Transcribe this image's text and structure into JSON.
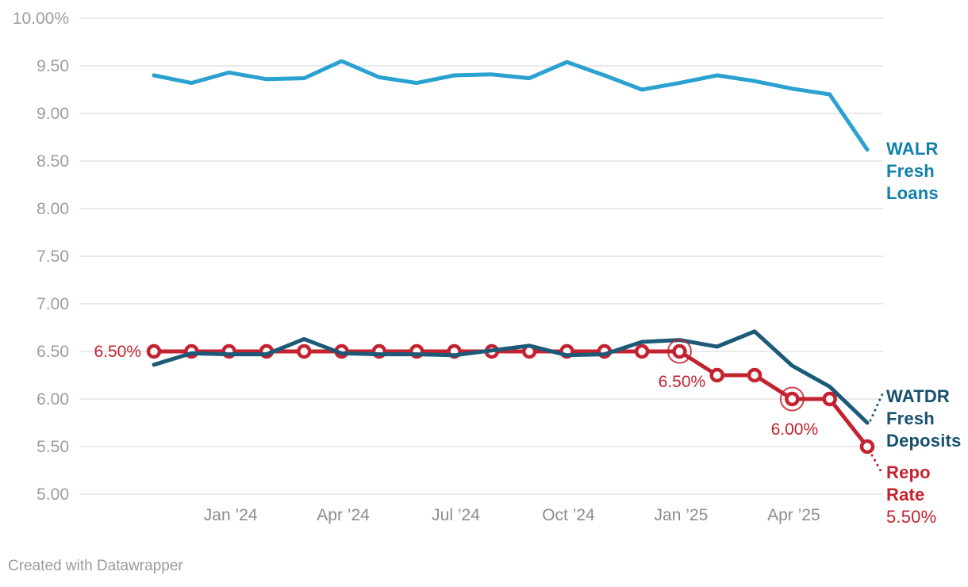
{
  "chart_data": {
    "type": "line",
    "x": [
      "Nov ’23",
      "Dec ’23",
      "Jan ’24",
      "Feb ’24",
      "Mar ’24",
      "Apr ’24",
      "May ’24",
      "Jun ’24",
      "Jul ’24",
      "Aug ’24",
      "Sep ’24",
      "Oct ’24",
      "Nov ’24",
      "Dec ’24",
      "Jan ’25",
      "Feb ’25",
      "Mar ’25",
      "Apr ’25",
      "May ’25",
      "Jun ’25"
    ],
    "ylim": [
      5.0,
      10.0
    ],
    "grid": "horizontal",
    "legend_position": "right-edge-labels",
    "y_ticks": [
      {
        "value": 10.0,
        "label": "10.00%"
      },
      {
        "value": 9.5,
        "label": "9.50"
      },
      {
        "value": 9.0,
        "label": "9.00"
      },
      {
        "value": 8.5,
        "label": "8.50"
      },
      {
        "value": 8.0,
        "label": "8.00"
      },
      {
        "value": 7.5,
        "label": "7.50"
      },
      {
        "value": 7.0,
        "label": "7.00"
      },
      {
        "value": 6.5,
        "label": "6.50"
      },
      {
        "value": 6.0,
        "label": "6.00"
      },
      {
        "value": 5.5,
        "label": "5.50"
      },
      {
        "value": 5.0,
        "label": "5.00"
      }
    ],
    "x_ticks": [
      {
        "index": 2,
        "label": "Jan ’24"
      },
      {
        "index": 5,
        "label": "Apr ’24"
      },
      {
        "index": 8,
        "label": "Jul ’24"
      },
      {
        "index": 11,
        "label": "Oct ’24"
      },
      {
        "index": 14,
        "label": "Jan ’25"
      },
      {
        "index": 17,
        "label": "Apr ’25"
      }
    ],
    "series": [
      {
        "id": "walr",
        "name": "WALR Fresh Loans",
        "color": "#2aa1d0",
        "markers": false,
        "values": [
          9.4,
          9.32,
          9.43,
          9.36,
          9.37,
          9.55,
          9.38,
          9.32,
          9.4,
          9.41,
          9.37,
          9.54,
          9.4,
          9.25,
          9.32,
          9.4,
          9.34,
          9.26,
          9.2,
          8.62
        ]
      },
      {
        "id": "watdr",
        "name": "WATDR Fresh Deposits",
        "color": "#1c5a78",
        "markers": false,
        "values": [
          6.36,
          6.48,
          6.47,
          6.47,
          6.63,
          6.48,
          6.47,
          6.47,
          6.46,
          6.51,
          6.56,
          6.46,
          6.47,
          6.6,
          6.62,
          6.55,
          6.71,
          6.35,
          6.13,
          5.75
        ]
      },
      {
        "id": "repo",
        "name": "Repo Rate",
        "color": "#c32330",
        "markers": true,
        "highlighted_points": [
          14,
          17
        ],
        "values": [
          6.5,
          6.5,
          6.5,
          6.5,
          6.5,
          6.5,
          6.5,
          6.5,
          6.5,
          6.5,
          6.5,
          6.5,
          6.5,
          6.5,
          6.5,
          6.25,
          6.25,
          6.0,
          6.0,
          5.5
        ]
      }
    ],
    "annotations": [
      {
        "text": "6.50%",
        "x_index": 0,
        "value": 6.5,
        "placement": "left"
      },
      {
        "text": "6.50%",
        "x_index": 14,
        "value": 6.5,
        "placement": "below"
      },
      {
        "text": "6.00%",
        "x_index": 17,
        "value": 6.0,
        "placement": "below"
      }
    ]
  },
  "series_labels": {
    "walr": {
      "line1": "WALR",
      "line2": "Fresh",
      "line3": "Loans"
    },
    "watdr": {
      "line1": "WATDR",
      "line2": "Fresh",
      "line3": "Deposits"
    },
    "repo": {
      "line1": "Repo",
      "line2": "Rate",
      "value": "5.50%"
    }
  },
  "footer": {
    "credit": "Created with Datawrapper"
  },
  "colors": {
    "walr_line": "#2aa1d0",
    "walr_label": "#0f81aa",
    "watdr_line": "#1c5a78",
    "watdr_label": "#15506e",
    "repo": "#c32330",
    "grid": "#e4e4e4",
    "y_tick_text": "#9d9d9d",
    "x_tick_text": "#8c8c8c",
    "footer_text": "#9b9b9b"
  }
}
